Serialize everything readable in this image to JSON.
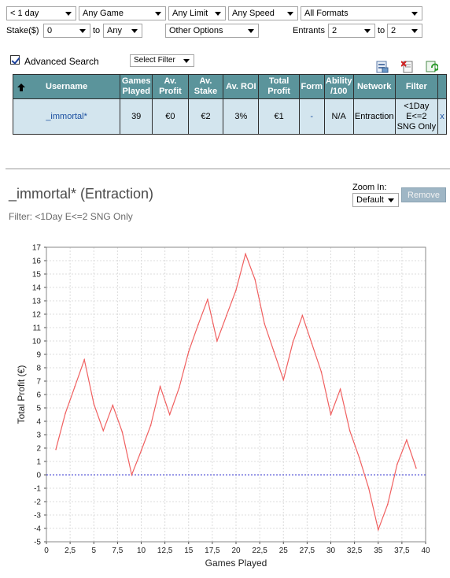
{
  "filters": {
    "period": "< 1 day",
    "game": "Any Game",
    "limit": "Any Limit",
    "speed": "Any Speed",
    "format": "All Formats",
    "stake_label": "Stake($)",
    "stake_min": "0",
    "to_label": "to",
    "stake_max": "Any",
    "other_options": "Other Options",
    "entrants_label": "Entrants",
    "entrants_min": "2",
    "entrants_max": "2"
  },
  "advanced_search": {
    "label": "Advanced Search",
    "checked": true,
    "select_filter": "Select Filter"
  },
  "table": {
    "headers": [
      "Username",
      "Games Played",
      "Av. Profit",
      "Av. Stake",
      "Av. ROI",
      "Total Profit",
      "Form",
      "Ability /100",
      "Network",
      "Filter"
    ],
    "row": {
      "username": "_immortal*",
      "games_played": "39",
      "av_profit": "€0",
      "av_stake": "€2",
      "av_roi": "3%",
      "total_profit": "€1",
      "form": "-",
      "ability": "N/A",
      "network": "Entraction",
      "filter": "<1Day E<=2 SNG Only",
      "remove": "x"
    }
  },
  "player": {
    "title": "_immortal* (Entraction)",
    "filter_text": "Filter: <1Day E<=2 SNG Only",
    "zoom_label": "Zoom In:",
    "zoom_value": "Default",
    "remove_label": "Remove"
  },
  "icons": [
    "export-icon",
    "delete-icon",
    "refresh-icon"
  ],
  "colors": {
    "header_bg": "#5b949b",
    "row_bg": "#d3e5ee",
    "line": "#f06060",
    "zero_line": "#3a3ad0"
  },
  "chart_data": {
    "type": "line",
    "xlabel": "Games Played",
    "ylabel": "Total Profit (€)",
    "xlim": [
      0,
      40
    ],
    "ylim": [
      -5,
      17
    ],
    "xticks": [
      0,
      2.5,
      5,
      7.5,
      10,
      12.5,
      15,
      17.5,
      20,
      22.5,
      25,
      27.5,
      30,
      32.5,
      35,
      37.5,
      40
    ],
    "xtick_labels": [
      "0",
      "2,5",
      "5",
      "7,5",
      "10",
      "12,5",
      "15",
      "17,5",
      "20",
      "22,5",
      "25",
      "27,5",
      "30",
      "32,5",
      "35",
      "37,5",
      "40"
    ],
    "yticks": [
      -5,
      -4,
      -3,
      -2,
      -1,
      0,
      1,
      2,
      3,
      4,
      5,
      6,
      7,
      8,
      9,
      10,
      11,
      12,
      13,
      14,
      15,
      16,
      17
    ],
    "grid": true,
    "zero_line": true,
    "x": [
      1,
      2,
      3,
      4,
      5,
      6,
      7,
      8,
      9,
      10,
      11,
      12,
      13,
      14,
      15,
      16,
      17,
      18,
      19,
      20,
      21,
      22,
      23,
      24,
      25,
      26,
      27,
      28,
      29,
      30,
      31,
      32,
      33,
      34,
      35,
      36,
      37,
      38,
      39
    ],
    "values": [
      1.9,
      4.6,
      6.6,
      8.6,
      5.3,
      3.3,
      5.2,
      3.2,
      0,
      1.8,
      3.7,
      6.6,
      4.5,
      6.5,
      9.2,
      11.2,
      13.1,
      10,
      11.9,
      13.8,
      16.5,
      14.6,
      11.3,
      9.2,
      7.1,
      9.9,
      11.9,
      9.8,
      7.7,
      4.5,
      6.4,
      3.3,
      1.3,
      -1,
      -4.1,
      -2.2,
      0.8,
      2.6,
      0.5
    ]
  }
}
